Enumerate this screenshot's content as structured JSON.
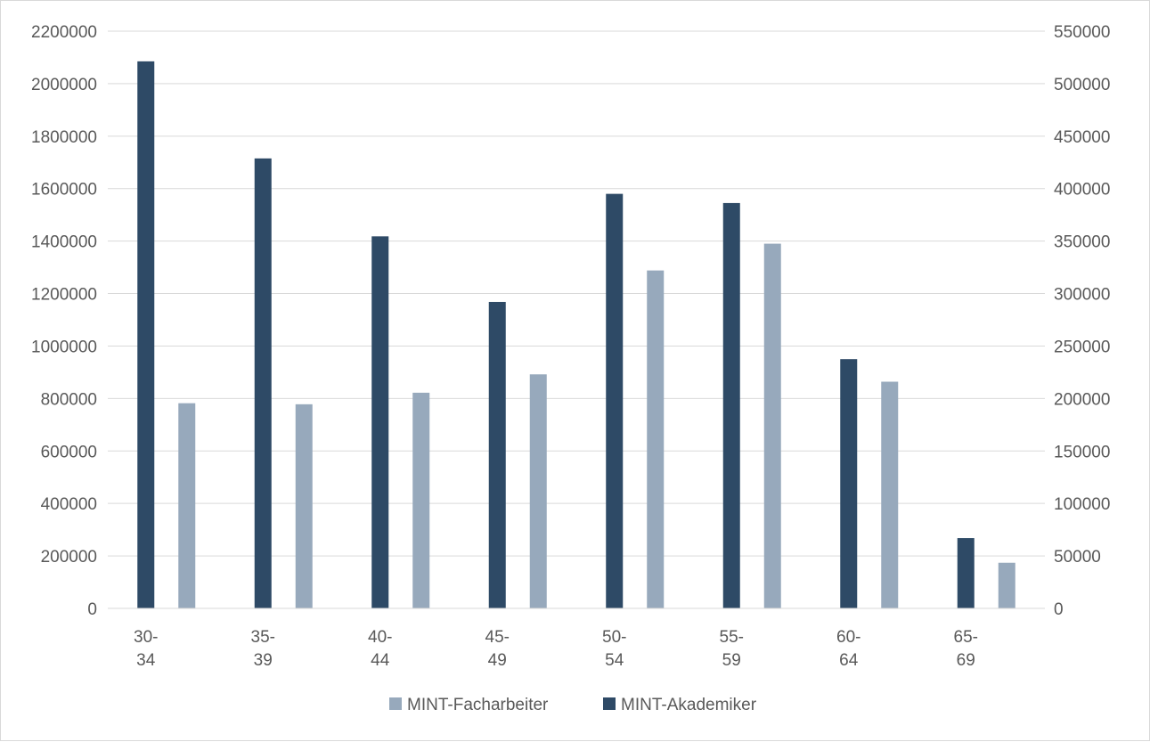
{
  "chart_data": {
    "type": "bar",
    "categories": [
      "30-\n34",
      "35-\n39",
      "40-\n44",
      "45-\n49",
      "50-\n54",
      "55-\n59",
      "60-\n64",
      "65-\n69"
    ],
    "series": [
      {
        "name": "MINT-Akademiker",
        "axis": "left",
        "color": "#2e4a66",
        "values": [
          2085000,
          1715000,
          1418000,
          1168000,
          1580000,
          1545000,
          950000,
          268000
        ]
      },
      {
        "name": "MINT-Facharbeiter",
        "axis": "right",
        "color": "#97a9bc",
        "values": [
          195500,
          194500,
          205500,
          223000,
          322000,
          347500,
          216000,
          43500
        ]
      }
    ],
    "y_left": {
      "min": 0,
      "max": 2200000,
      "ticks": [
        "0",
        "200000",
        "400000",
        "600000",
        "800000",
        "1000000",
        "1200000",
        "1400000",
        "1600000",
        "1800000",
        "2000000",
        "2200000"
      ]
    },
    "y_right": {
      "min": 0,
      "max": 550000,
      "ticks": [
        "0",
        "50000",
        "100000",
        "150000",
        "200000",
        "250000",
        "300000",
        "350000",
        "400000",
        "450000",
        "500000",
        "550000"
      ]
    },
    "grid": true,
    "legend": {
      "position": "bottom",
      "order": [
        "MINT-Facharbeiter",
        "MINT-Akademiker"
      ]
    }
  }
}
